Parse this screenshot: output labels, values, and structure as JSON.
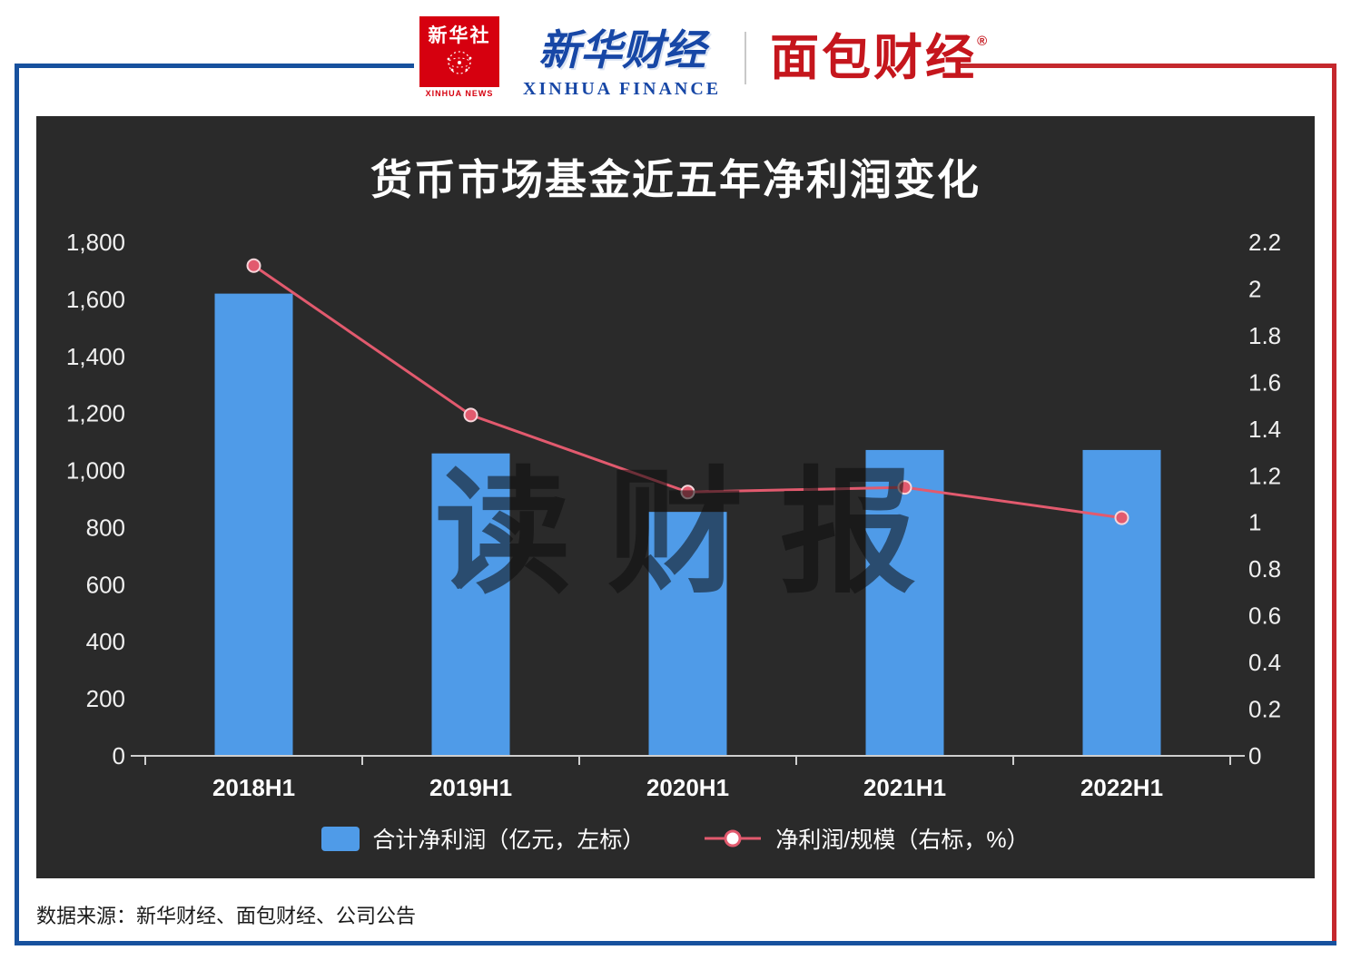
{
  "header": {
    "xinhua_news": {
      "cn": "新华社",
      "en": "XINHUA NEWS"
    },
    "xinhua_finance": {
      "cn": "新华财经",
      "en": "XINHUA FINANCE"
    },
    "mianbao": {
      "cn": "面包财经",
      "reg": "®"
    }
  },
  "chart_data": {
    "type": "bar+line",
    "title": "货币市场基金近五年净利润变化",
    "categories": [
      "2018H1",
      "2019H1",
      "2020H1",
      "2021H1",
      "2022H1"
    ],
    "series": [
      {
        "name": "合计净利润（亿元，左标）",
        "type": "bar",
        "axis": "left",
        "color": "#4f9be8",
        "values": [
          1620,
          1060,
          855,
          1072,
          1072
        ]
      },
      {
        "name": "净利润/规模（右标，%）",
        "type": "line",
        "axis": "right",
        "color": "#e25a6e",
        "values": [
          2.1,
          1.46,
          1.13,
          1.15,
          1.02
        ]
      }
    ],
    "left_axis": {
      "min": 0,
      "max": 1800,
      "step": 200,
      "ticks": [
        "1,800",
        "1,600",
        "1,400",
        "1,200",
        "1,000",
        "800",
        "600",
        "400",
        "200",
        "0"
      ]
    },
    "right_axis": {
      "min": 0,
      "max": 2.2,
      "step": 0.2,
      "ticks": [
        "2.2",
        "2",
        "1.8",
        "1.6",
        "1.4",
        "1.2",
        "1",
        "0.8",
        "0.6",
        "0.4",
        "0.2",
        "0"
      ]
    },
    "grid": false,
    "legend_position": "bottom",
    "watermark": "读财报",
    "panel_bg": "#2a2a2a"
  },
  "footer": {
    "source": "数据来源：新华财经、面包财经、公司公告"
  }
}
